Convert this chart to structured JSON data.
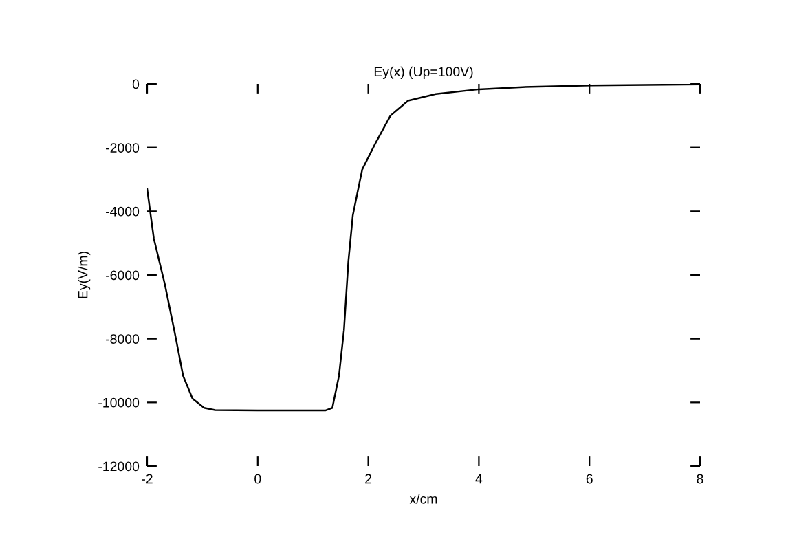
{
  "chart_data": {
    "type": "line",
    "title": "Ey(x) (Up=100V)",
    "xlabel": "x/cm",
    "ylabel": "Ey(V/m)",
    "series": [
      {
        "color": "#000000",
        "x": [
          -2.0,
          -1.88,
          -1.68,
          -1.51,
          -1.35,
          -1.18,
          -0.97,
          -0.77,
          0.0,
          0.5,
          1.0,
          1.23,
          1.35,
          1.47,
          1.56,
          1.64,
          1.72,
          1.89,
          2.14,
          2.4,
          2.72,
          3.22,
          4.0,
          4.79,
          6.03,
          8.0
        ],
        "values": [
          -3300,
          -4850,
          -6290,
          -7730,
          -9160,
          -9880,
          -10170,
          -10240,
          -10250,
          -10250,
          -10250,
          -10250,
          -10170,
          -9160,
          -7730,
          -5570,
          -4130,
          -2690,
          -1830,
          -1000,
          -530,
          -320,
          -170,
          -100,
          -50,
          -15
        ]
      }
    ],
    "xlim": [
      -2,
      8
    ],
    "ylim": [
      -12000,
      0
    ],
    "xticks": [
      -2,
      0,
      2,
      4,
      6,
      8
    ],
    "yticks": [
      -12000,
      -10000,
      -8000,
      -6000,
      -4000,
      -2000,
      0
    ],
    "grid": false,
    "legend": false,
    "marker": "none",
    "line_style": "solid"
  }
}
